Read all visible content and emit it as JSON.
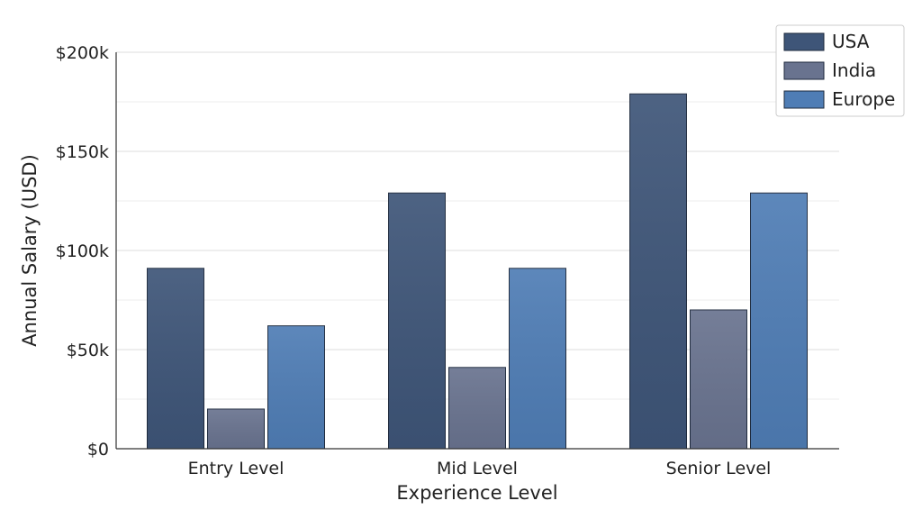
{
  "chart_data": {
    "type": "bar",
    "title": "",
    "xlabel": "Experience Level",
    "ylabel": "Annual Salary (USD)",
    "categories": [
      "Entry Level",
      "Mid Level",
      "Senior Level"
    ],
    "series": [
      {
        "name": "USA",
        "values": [
          91000,
          129000,
          179000
        ],
        "color": "#3e5578"
      },
      {
        "name": "India",
        "values": [
          20000,
          41000,
          70000
        ],
        "color": "#69738f"
      },
      {
        "name": "Europe",
        "values": [
          62000,
          91000,
          129000
        ],
        "color": "#4f7db5"
      }
    ],
    "ylim": [
      0,
      200000
    ],
    "yticks": [
      0,
      50000,
      100000,
      150000,
      200000
    ],
    "ytick_labels": [
      "$0",
      "$50k",
      "$100k",
      "$150k",
      "$200k"
    ],
    "grid": true,
    "legend_position": "top-right"
  }
}
